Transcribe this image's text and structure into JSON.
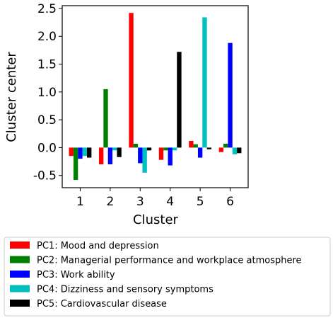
{
  "chart_data": {
    "type": "bar",
    "categories": [
      "1",
      "2",
      "3",
      "4",
      "5",
      "6"
    ],
    "xlabel": "Cluster",
    "ylabel": "Cluster center",
    "ylim": [
      -0.72,
      2.55
    ],
    "yticks": [
      -0.5,
      0.0,
      0.5,
      1.0,
      1.5,
      2.0,
      2.5
    ],
    "grid": false,
    "legend_placement": "below",
    "series": [
      {
        "name": "PC1: Mood and depression",
        "color": "#ff0000",
        "values": [
          -0.15,
          -0.3,
          2.42,
          -0.22,
          0.12,
          -0.08
        ]
      },
      {
        "name": "PC2: Managerial performance and workplace atmosphere",
        "color": "#008000",
        "values": [
          -0.58,
          1.05,
          0.07,
          -0.05,
          0.06,
          0.07
        ]
      },
      {
        "name": "PC3: Work ability",
        "color": "#0000ff",
        "values": [
          -0.2,
          -0.3,
          -0.28,
          -0.32,
          -0.18,
          1.88
        ]
      },
      {
        "name": "PC4: Dizziness and sensory symptoms",
        "color": "#00bfbf",
        "values": [
          -0.15,
          -0.05,
          -0.45,
          -0.05,
          2.34,
          -0.12
        ]
      },
      {
        "name": "PC5: Cardiovascular disease",
        "color": "#000000",
        "values": [
          -0.18,
          -0.17,
          -0.05,
          1.72,
          -0.03,
          -0.1
        ]
      }
    ]
  }
}
